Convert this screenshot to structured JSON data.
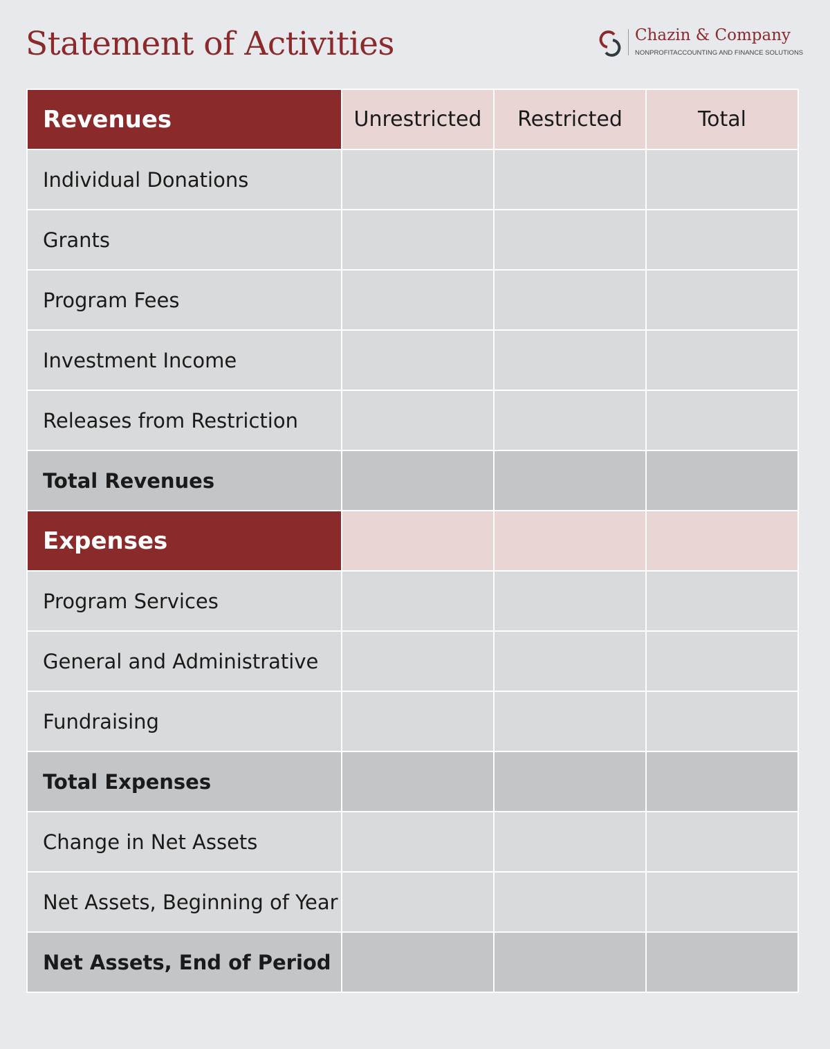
{
  "title": "Statement of Activities",
  "logo": {
    "name": "Chazin & Company",
    "tagline": "NONPROFITACCOUNTING AND FINANCE SOLUTIONS",
    "icon": "interlocked-c-logo-icon"
  },
  "colors": {
    "brand": "#8b2a2b",
    "header_pink": "#ead5d5",
    "cell": "#d9dadc",
    "total_cell": "#c2c6c9",
    "background": "#e8e9ed"
  },
  "columns": [
    "Unrestricted",
    "Restricted",
    "Total"
  ],
  "revenues": {
    "header": "Revenues",
    "items": [
      "Individual Donations",
      "Grants",
      "Program Fees",
      "Investment Income",
      "Releases from Restriction"
    ],
    "total": "Total Revenues"
  },
  "expenses": {
    "header": "Expenses",
    "items": [
      "Program Services",
      "General and Administrative",
      "Fundraising"
    ],
    "total": "Total Expenses"
  },
  "net": {
    "change": "Change in Net Assets",
    "beginning": "Net Assets, Beginning of Year",
    "end": "Net Assets, End of Period"
  }
}
